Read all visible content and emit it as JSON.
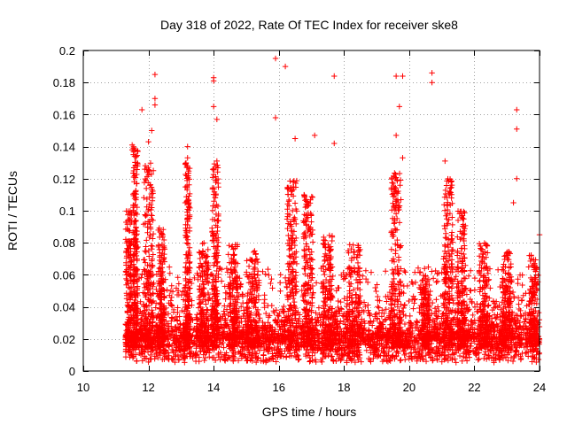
{
  "chart_data": {
    "type": "scatter",
    "title": "Day 318 of 2022, Rate Of TEC Index for receiver ske8",
    "xlabel": "GPS time / hours",
    "ylabel": "ROTI / TECUs",
    "xlim": [
      10,
      24
    ],
    "ylim": [
      0,
      0.2
    ],
    "x_ticks": [
      10,
      12,
      14,
      16,
      18,
      20,
      22,
      24
    ],
    "y_ticks": [
      0,
      0.02,
      0.04,
      0.06,
      0.08,
      0.1,
      0.12,
      0.14,
      0.16,
      0.18,
      0.2
    ],
    "x_tick_labels": [
      "10",
      "12",
      "14",
      "16",
      "18",
      "20",
      "22",
      "24"
    ],
    "y_tick_labels": [
      "0",
      "0.02",
      "0.04",
      "0.06",
      "0.08",
      "0.1",
      "0.12",
      "0.14",
      "0.16",
      "0.18",
      "0.2"
    ],
    "grid": true,
    "marker": "+",
    "marker_color": "#ff0000",
    "data_x_range": [
      11.3,
      24
    ],
    "dense_band": [
      0.005,
      0.035
    ],
    "notable_points": [
      {
        "x": 11.8,
        "y": 0.163
      },
      {
        "x": 12.2,
        "y": 0.185
      },
      {
        "x": 12.2,
        "y": 0.17
      },
      {
        "x": 12.2,
        "y": 0.166
      },
      {
        "x": 11.5,
        "y": 0.141
      },
      {
        "x": 11.5,
        "y": 0.138
      },
      {
        "x": 12.1,
        "y": 0.15
      },
      {
        "x": 12.0,
        "y": 0.143
      },
      {
        "x": 13.2,
        "y": 0.14
      },
      {
        "x": 13.2,
        "y": 0.133
      },
      {
        "x": 14.0,
        "y": 0.183
      },
      {
        "x": 14.0,
        "y": 0.181
      },
      {
        "x": 14.0,
        "y": 0.165
      },
      {
        "x": 14.1,
        "y": 0.157
      },
      {
        "x": 14.1,
        "y": 0.131
      },
      {
        "x": 15.9,
        "y": 0.195
      },
      {
        "x": 16.2,
        "y": 0.19
      },
      {
        "x": 15.9,
        "y": 0.158
      },
      {
        "x": 16.5,
        "y": 0.145
      },
      {
        "x": 17.1,
        "y": 0.147
      },
      {
        "x": 17.7,
        "y": 0.184
      },
      {
        "x": 17.7,
        "y": 0.142
      },
      {
        "x": 19.6,
        "y": 0.184
      },
      {
        "x": 19.8,
        "y": 0.184
      },
      {
        "x": 19.7,
        "y": 0.165
      },
      {
        "x": 19.6,
        "y": 0.147
      },
      {
        "x": 19.8,
        "y": 0.133
      },
      {
        "x": 20.7,
        "y": 0.186
      },
      {
        "x": 20.7,
        "y": 0.18
      },
      {
        "x": 21.1,
        "y": 0.131
      },
      {
        "x": 23.3,
        "y": 0.163
      },
      {
        "x": 23.3,
        "y": 0.151
      },
      {
        "x": 23.3,
        "y": 0.12
      },
      {
        "x": 23.2,
        "y": 0.105
      },
      {
        "x": 24.0,
        "y": 0.085
      }
    ],
    "activity_bursts": [
      {
        "center": 11.4,
        "width": 0.2,
        "peak": 0.1
      },
      {
        "center": 11.6,
        "width": 0.15,
        "peak": 0.14
      },
      {
        "center": 12.0,
        "width": 0.3,
        "peak": 0.13
      },
      {
        "center": 12.4,
        "width": 0.2,
        "peak": 0.09
      },
      {
        "center": 13.2,
        "width": 0.15,
        "peak": 0.13
      },
      {
        "center": 13.7,
        "width": 0.3,
        "peak": 0.08
      },
      {
        "center": 14.05,
        "width": 0.2,
        "peak": 0.13
      },
      {
        "center": 14.6,
        "width": 0.3,
        "peak": 0.08
      },
      {
        "center": 15.2,
        "width": 0.4,
        "peak": 0.075
      },
      {
        "center": 16.4,
        "width": 0.3,
        "peak": 0.12
      },
      {
        "center": 16.9,
        "width": 0.3,
        "peak": 0.11
      },
      {
        "center": 17.5,
        "width": 0.3,
        "peak": 0.085
      },
      {
        "center": 18.3,
        "width": 0.4,
        "peak": 0.08
      },
      {
        "center": 19.6,
        "width": 0.3,
        "peak": 0.125
      },
      {
        "center": 20.5,
        "width": 0.25,
        "peak": 0.06
      },
      {
        "center": 21.2,
        "width": 0.3,
        "peak": 0.12
      },
      {
        "center": 21.6,
        "width": 0.25,
        "peak": 0.1
      },
      {
        "center": 22.3,
        "width": 0.3,
        "peak": 0.08
      },
      {
        "center": 23.0,
        "width": 0.3,
        "peak": 0.075
      },
      {
        "center": 23.8,
        "width": 0.25,
        "peak": 0.075
      }
    ]
  }
}
